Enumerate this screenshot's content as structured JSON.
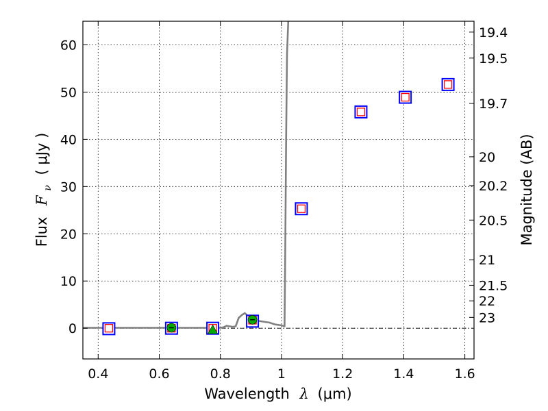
{
  "chart_data": {
    "type": "scatter",
    "xlabel_prefix": "Wavelength",
    "xlabel_symbol": "λ",
    "xlabel_unit": "(μm)",
    "ylabel_prefix": "Flux",
    "ylabel_symbol": "F",
    "ylabel_subscript": "ν",
    "ylabel_unit": "( μJy )",
    "ylabel_right": "Magnitude (AB)",
    "xlim": [
      0.35,
      1.63
    ],
    "ylim": [
      -6.5,
      65
    ],
    "grid": true,
    "x_ticks": [
      0.4,
      0.6,
      0.8,
      1,
      1.2,
      1.4,
      1.6
    ],
    "x_tick_labels": [
      "0.4",
      "0.6",
      "0.8",
      "1",
      "1.2",
      "1.4",
      "1.6"
    ],
    "y_ticks": [
      0,
      10,
      20,
      30,
      40,
      50,
      60
    ],
    "y_tick_labels": [
      "0",
      "10",
      "20",
      "30",
      "40",
      "50",
      "60"
    ],
    "right_ticks": [
      {
        "label": "19.4",
        "flux": 62.7
      },
      {
        "label": "19.5",
        "flux": 57.2
      },
      {
        "label": "19.7",
        "flux": 47.6
      },
      {
        "label": "20",
        "flux": 36.3
      },
      {
        "label": "20.2",
        "flux": 30.2
      },
      {
        "label": "20.5",
        "flux": 22.9
      },
      {
        "label": "21",
        "flux": 14.5
      },
      {
        "label": "21.5",
        "flux": 9.1
      },
      {
        "label": "22",
        "flux": 5.8
      },
      {
        "label": "23",
        "flux": 2.3
      }
    ],
    "model_spectrum": {
      "color": "#808080",
      "x": [
        0.35,
        0.4,
        0.5,
        0.6,
        0.7,
        0.8,
        0.81,
        0.82,
        0.83,
        0.84,
        0.85,
        0.86,
        0.87,
        0.88,
        0.89,
        0.9,
        0.91,
        0.92,
        0.94,
        0.96,
        0.98,
        1.0,
        1.01,
        1.012,
        1.015,
        1.018,
        1.022
      ],
      "y": [
        0.1,
        0.1,
        0.1,
        0.1,
        0.1,
        0.1,
        0.2,
        0.5,
        0.4,
        0.3,
        0.4,
        2.2,
        2.8,
        3.2,
        2.6,
        1.8,
        2.1,
        1.6,
        1.4,
        1.2,
        0.8,
        0.6,
        0.4,
        14,
        40,
        58,
        65
      ]
    },
    "observed_squares": {
      "color": "#0000ff",
      "x": [
        0.435,
        0.64,
        0.775,
        0.905,
        1.065,
        1.26,
        1.405,
        1.545
      ],
      "y": [
        -0.1,
        0.0,
        0.0,
        1.5,
        25.3,
        45.8,
        48.9,
        51.6
      ]
    },
    "model_squares": {
      "color": "#ff0000",
      "x": [
        0.435,
        0.64,
        0.775,
        0.905,
        1.065,
        1.26,
        1.405,
        1.545
      ],
      "y": [
        0.0,
        0.0,
        0.0,
        1.7,
        25.3,
        45.8,
        48.9,
        51.6
      ]
    },
    "green_circles": {
      "color": "#00aa00",
      "x": [
        0.64,
        0.905
      ],
      "y": [
        0.1,
        1.8
      ]
    },
    "green_triangle": {
      "color": "#00aa00",
      "x": [
        0.775
      ],
      "y": [
        -0.3
      ]
    }
  }
}
